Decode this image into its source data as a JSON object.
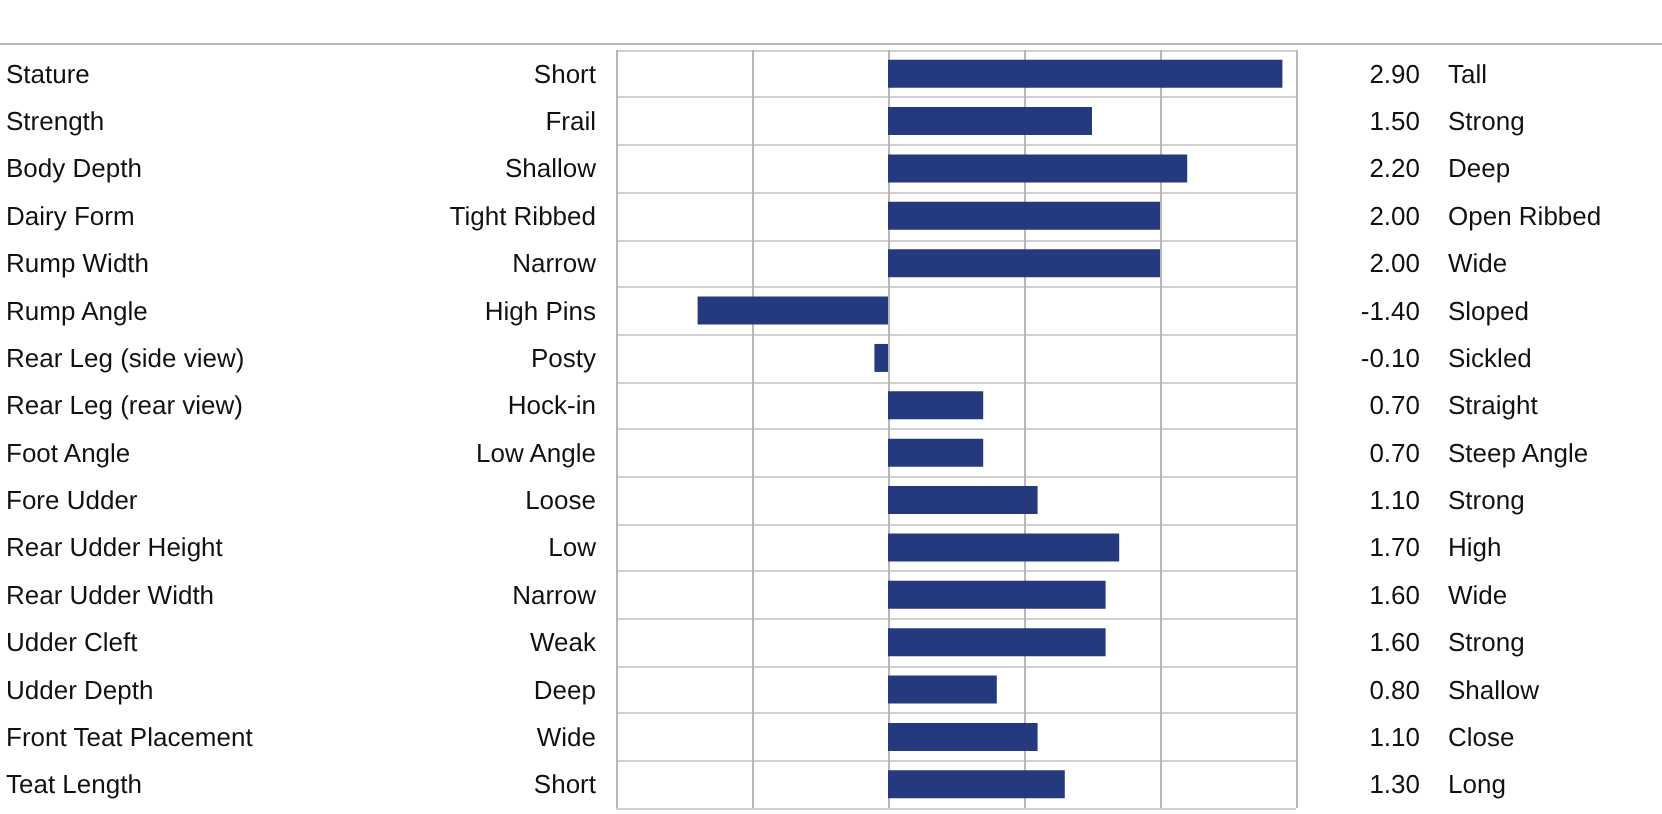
{
  "chart_data": {
    "type": "bar",
    "orientation": "horizontal",
    "color": "#253a7e",
    "grid": true,
    "categories": [
      "Stature",
      "Strength",
      "Body Depth",
      "Dairy Form",
      "Rump Width",
      "Rump Angle",
      "Rear Leg (side view)",
      "Rear Leg (rear view)",
      "Foot Angle",
      "Fore Udder",
      "Rear Udder Height",
      "Rear Udder Width",
      "Udder Cleft",
      "Udder Depth",
      "Front Teat Placement",
      "Teat Length"
    ],
    "values": [
      2.9,
      1.5,
      2.2,
      2.0,
      2.0,
      -1.4,
      -0.1,
      0.7,
      0.7,
      1.1,
      1.7,
      1.6,
      1.6,
      0.8,
      1.1,
      1.3
    ],
    "value_labels": [
      "2.90",
      "1.50",
      "2.20",
      "2.00",
      "2.00",
      "-1.40",
      "-0.10",
      "0.70",
      "0.70",
      "1.10",
      "1.70",
      "1.60",
      "1.60",
      "0.80",
      "1.10",
      "1.30"
    ],
    "xlim": [
      -2,
      3
    ],
    "xticks": [
      {
        "value": -2,
        "label": null
      },
      {
        "value": -1,
        "label": null
      },
      {
        "value": 0,
        "label": null
      },
      {
        "value": 1,
        "label": null
      },
      {
        "value": 2,
        "label": null
      },
      {
        "value": 3,
        "label": null
      }
    ],
    "annotations": [
      "Short",
      "Tall",
      "Frail",
      "Strong",
      "Shallow",
      "Deep",
      "Tight Ribbed",
      "Open Ribbed",
      "Narrow",
      "Wide",
      "High Pins",
      "Sloped",
      "Posty",
      "Sickled",
      "Hock-in",
      "Straight",
      "Low Angle",
      "Steep Angle",
      "Loose",
      "Strong",
      "Low",
      "High",
      "Narrow",
      "Wide",
      "Weak",
      "Strong",
      "Deep",
      "Shallow",
      "Wide",
      "Close",
      "Short",
      "Long"
    ]
  }
}
